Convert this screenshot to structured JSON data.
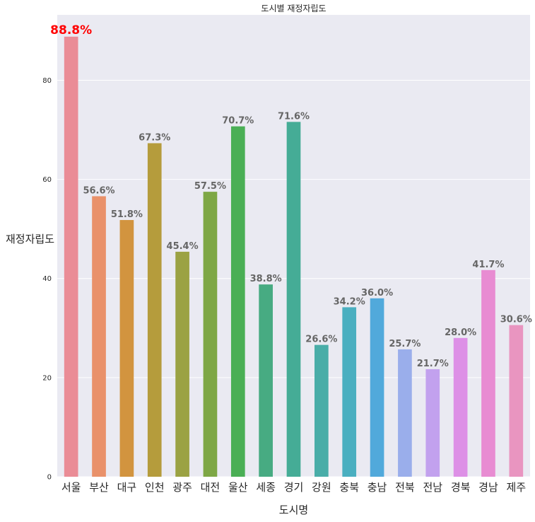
{
  "chart_data": {
    "type": "bar",
    "title": "도시별 재정자립도",
    "xlabel": "도시명",
    "ylabel": "재정자립도",
    "categories": [
      "서울",
      "부산",
      "대구",
      "인천",
      "광주",
      "대전",
      "울산",
      "세종",
      "경기",
      "강원",
      "충북",
      "충남",
      "전북",
      "전남",
      "경북",
      "경남",
      "제주"
    ],
    "values": [
      88.8,
      56.6,
      51.8,
      67.3,
      45.4,
      57.5,
      70.7,
      38.8,
      71.6,
      26.6,
      34.2,
      36.0,
      25.7,
      21.7,
      28.0,
      41.7,
      30.6
    ],
    "value_labels": [
      "88.8%",
      "56.6%",
      "51.8%",
      "67.3%",
      "45.4%",
      "57.5%",
      "70.7%",
      "38.8%",
      "71.6%",
      "26.6%",
      "34.2%",
      "36.0%",
      "25.7%",
      "21.7%",
      "28.0%",
      "41.7%",
      "30.6%"
    ],
    "colors": [
      "#ea8c96",
      "#e9916a",
      "#d2943f",
      "#b59c3c",
      "#9ba243",
      "#7ea745",
      "#4aaf55",
      "#47ab82",
      "#45ac96",
      "#49ada8",
      "#4aafc0",
      "#51a9db",
      "#9aaeeb",
      "#c2a1ee",
      "#dd90e6",
      "#e88cd2",
      "#e995c0"
    ],
    "highlight_index": 0,
    "highlight_color": "#ff0000",
    "yticks": [
      0,
      20,
      40,
      60,
      80
    ],
    "ylim": [
      0,
      93.2
    ],
    "grid": true,
    "background": "#eaeaf2"
  }
}
